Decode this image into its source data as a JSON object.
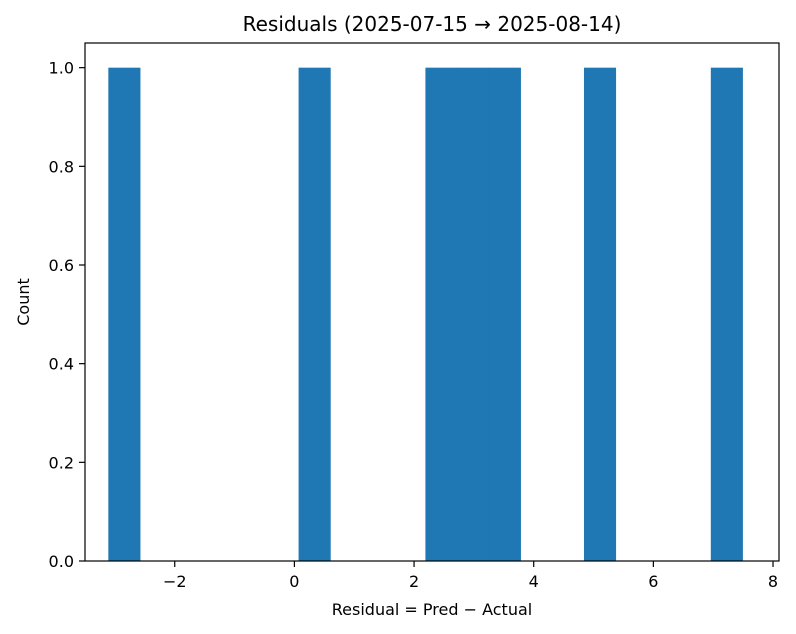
{
  "chart_data": {
    "type": "bar",
    "subtype": "histogram",
    "title": "Residuals (2025-07-15 → 2025-08-14)",
    "xlabel": "Residual = Pred − Actual",
    "ylabel": "Count",
    "xlim": [
      -3.5,
      8.1
    ],
    "ylim": [
      0,
      1.05
    ],
    "x_ticks": [
      -2,
      0,
      2,
      4,
      6,
      8
    ],
    "x_tick_labels": [
      "−2",
      "0",
      "2",
      "4",
      "6",
      "8"
    ],
    "y_ticks": [
      0.0,
      0.2,
      0.4,
      0.6,
      0.8,
      1.0
    ],
    "y_tick_labels": [
      "0.0",
      "0.2",
      "0.4",
      "0.6",
      "0.8",
      "1.0"
    ],
    "grid": false,
    "legend": "none",
    "bar_color": "#1f77b4",
    "bins": [
      {
        "x0": -3.11,
        "x1": -2.58,
        "count": 1
      },
      {
        "x0": 0.07,
        "x1": 0.6,
        "count": 1
      },
      {
        "x0": 2.19,
        "x1": 2.72,
        "count": 1
      },
      {
        "x0": 2.72,
        "x1": 3.25,
        "count": 1
      },
      {
        "x0": 3.25,
        "x1": 3.78,
        "count": 1
      },
      {
        "x0": 4.84,
        "x1": 5.37,
        "count": 1
      },
      {
        "x0": 6.96,
        "x1": 7.49,
        "count": 1
      }
    ]
  }
}
